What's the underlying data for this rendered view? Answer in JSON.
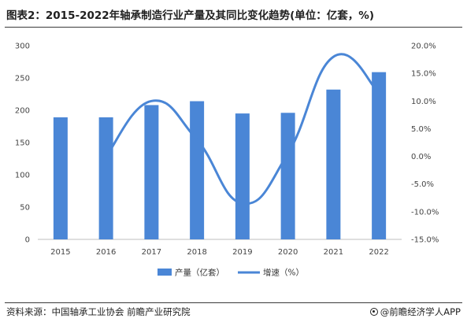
{
  "header": {
    "title": "图表2：2015-2022年轴承制造行业产量及其同比变化趋势(单位：亿套，%)"
  },
  "footer": {
    "source": "资料来源：中国轴承工业协会 前瞻产业研究院",
    "brand": "@前瞻经济学人APP"
  },
  "colors": {
    "bar": "#4A86D6",
    "line": "#4A86D6"
  },
  "chart_data": {
    "type": "bar",
    "categories": [
      "2015",
      "2016",
      "2017",
      "2018",
      "2019",
      "2020",
      "2021",
      "2022"
    ],
    "series": [
      {
        "name": "产量（亿套）",
        "type": "bar",
        "axis": "left",
        "values": [
          189,
          189,
          208,
          214,
          195,
          196,
          232,
          259
        ]
      },
      {
        "name": "增速（%）",
        "type": "line",
        "smooth": true,
        "axis": "right",
        "values": [
          null,
          0.0,
          10.0,
          3.0,
          -8.5,
          0.5,
          18.0,
          11.5
        ]
      }
    ],
    "left_axis": {
      "ylim": [
        0,
        300
      ],
      "ticks": [
        0,
        50,
        100,
        150,
        200,
        250,
        300
      ]
    },
    "right_axis": {
      "ylim": [
        -15,
        20
      ],
      "ticks": [
        -15,
        -10,
        -5,
        0,
        5,
        10,
        15,
        20
      ],
      "tick_labels": [
        "-15.0%",
        "-10.0%",
        "-5.0%",
        "0.0%",
        "5.0%",
        "10.0%",
        "15.0%",
        "20.0%"
      ]
    },
    "legend": [
      "产量（亿套）",
      "增速（%）"
    ],
    "legend_position": "bottom",
    "grid": false
  }
}
